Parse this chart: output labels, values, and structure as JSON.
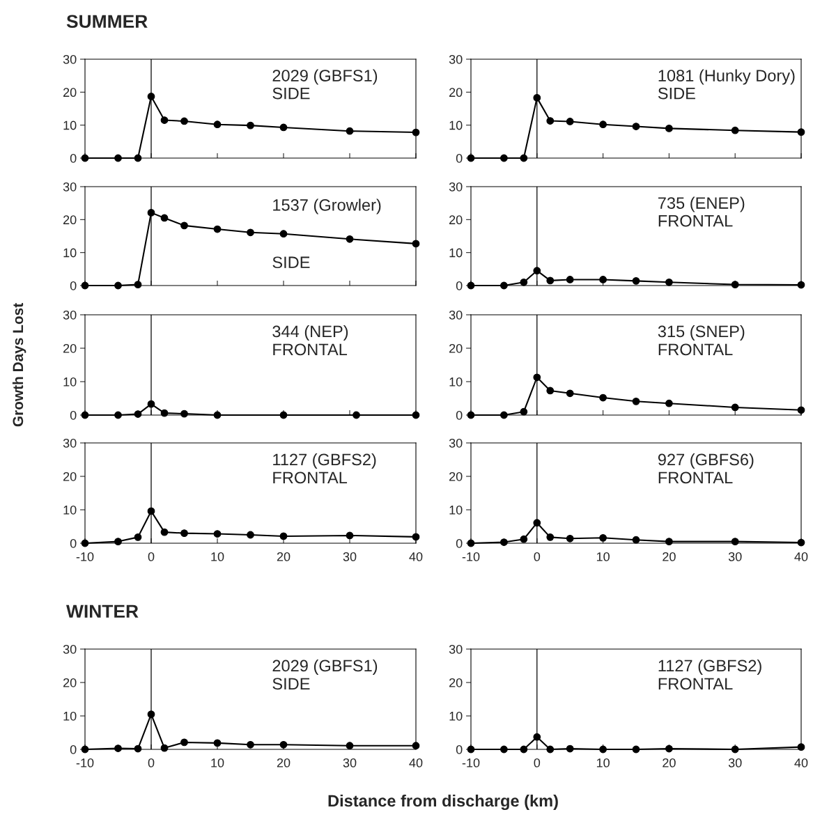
{
  "chart_data": [
    {
      "type": "line",
      "title": "SUMMER",
      "annotations": [
        "2029 (GBFS1)",
        "SIDE"
      ],
      "x": [
        -10,
        -5,
        -2,
        0,
        2,
        5,
        10,
        15,
        20,
        30,
        40
      ],
      "series": [
        {
          "color": "#000000",
          "values": [
            0,
            0,
            0,
            18.7,
            11.5,
            11.2,
            10.2,
            9.9,
            9.3,
            8.2,
            7.8
          ]
        }
      ],
      "xlim": [
        -10,
        40
      ],
      "xticks": [
        -10,
        0,
        10,
        20,
        30,
        40
      ],
      "ylim": [
        0,
        30
      ],
      "yticks": [
        0,
        10,
        20,
        30
      ],
      "tick_labels": "y",
      "ref_lines": [
        {
          "axis": "x",
          "value": 0
        }
      ],
      "marker": "circle",
      "line_style": "solid"
    },
    {
      "type": "line",
      "annotations": [
        "1081 (Hunky Dory)",
        "SIDE"
      ],
      "x": [
        -10,
        -5,
        -2,
        0,
        2,
        5,
        10,
        15,
        20,
        30,
        40
      ],
      "series": [
        {
          "color": "#000000",
          "values": [
            0,
            0,
            0,
            18.3,
            11.3,
            11.1,
            10.2,
            9.6,
            9.0,
            8.4,
            7.9
          ]
        }
      ],
      "xlim": [
        -10,
        40
      ],
      "xticks": [
        -10,
        0,
        10,
        20,
        30,
        40
      ],
      "ylim": [
        0,
        30
      ],
      "yticks": [
        0,
        10,
        20,
        30
      ],
      "tick_labels": "y",
      "ref_lines": [
        {
          "axis": "x",
          "value": 0
        }
      ],
      "marker": "circle",
      "line_style": "solid"
    },
    {
      "type": "line",
      "annotations": [
        "1537 (Growler)",
        "SIDE"
      ],
      "x": [
        -10,
        -5,
        -2,
        0,
        2,
        5,
        10,
        15,
        20,
        30,
        40
      ],
      "series": [
        {
          "color": "#000000",
          "values": [
            0,
            0,
            0.3,
            22.1,
            20.5,
            18.2,
            17.1,
            16.1,
            15.7,
            14.1,
            12.7
          ]
        }
      ],
      "xlim": [
        -10,
        40
      ],
      "xticks": [
        -10,
        0,
        10,
        20,
        30,
        40
      ],
      "ylim": [
        0,
        30
      ],
      "yticks": [
        0,
        10,
        20,
        30
      ],
      "tick_labels": "y",
      "ref_lines": [
        {
          "axis": "x",
          "value": 0
        }
      ],
      "marker": "circle",
      "line_style": "solid"
    },
    {
      "type": "line",
      "annotations": [
        "735 (ENEP)",
        "FRONTAL"
      ],
      "x": [
        -10,
        -5,
        -2,
        0,
        2,
        5,
        10,
        15,
        20,
        30,
        40
      ],
      "series": [
        {
          "color": "#000000",
          "values": [
            0,
            0,
            1.0,
            4.5,
            1.5,
            1.8,
            1.8,
            1.4,
            1.0,
            0.3,
            0.2
          ]
        }
      ],
      "xlim": [
        -10,
        40
      ],
      "xticks": [
        -10,
        0,
        10,
        20,
        30,
        40
      ],
      "ylim": [
        0,
        30
      ],
      "yticks": [
        0,
        10,
        20,
        30
      ],
      "tick_labels": "y",
      "ref_lines": [
        {
          "axis": "x",
          "value": 0
        }
      ],
      "marker": "circle",
      "line_style": "solid"
    },
    {
      "type": "line",
      "ylabel": "Growth Days Lost",
      "annotations": [
        "344 (NEP)",
        "FRONTAL"
      ],
      "x": [
        -10,
        -5,
        -2,
        0,
        2,
        5,
        10,
        20,
        31,
        40
      ],
      "series": [
        {
          "color": "#000000",
          "values": [
            0,
            0,
            0.3,
            3.3,
            0.6,
            0.4,
            0,
            0,
            0,
            0
          ]
        }
      ],
      "xlim": [
        -10,
        40
      ],
      "xticks": [
        -10,
        0,
        10,
        20,
        30,
        40
      ],
      "ylim": [
        0,
        30
      ],
      "yticks": [
        0,
        10,
        20,
        30
      ],
      "tick_labels": "y",
      "ref_lines": [
        {
          "axis": "x",
          "value": 0
        }
      ],
      "marker": "circle",
      "line_style": "solid"
    },
    {
      "type": "line",
      "annotations": [
        "315 (SNEP)",
        "FRONTAL"
      ],
      "x": [
        -10,
        -5,
        -2,
        0,
        2,
        5,
        10,
        15,
        20,
        30,
        40
      ],
      "series": [
        {
          "color": "#000000",
          "values": [
            0,
            0,
            1.0,
            11.3,
            7.3,
            6.5,
            5.2,
            4.1,
            3.5,
            2.3,
            1.5
          ]
        }
      ],
      "xlim": [
        -10,
        40
      ],
      "xticks": [
        -10,
        0,
        10,
        20,
        30,
        40
      ],
      "ylim": [
        0,
        30
      ],
      "yticks": [
        0,
        10,
        20,
        30
      ],
      "tick_labels": "y",
      "ref_lines": [
        {
          "axis": "x",
          "value": 0
        }
      ],
      "marker": "circle",
      "line_style": "solid"
    },
    {
      "type": "line",
      "annotations": [
        "1127 (GBFS2)",
        "FRONTAL"
      ],
      "x": [
        -10,
        -5,
        -2,
        0,
        2,
        5,
        10,
        15,
        20,
        30,
        40
      ],
      "series": [
        {
          "color": "#000000",
          "values": [
            0,
            0.5,
            1.8,
            9.6,
            3.3,
            3.0,
            2.8,
            2.5,
            2.1,
            2.3,
            1.9
          ]
        }
      ],
      "xlim": [
        -10,
        40
      ],
      "xticks": [
        -10,
        0,
        10,
        20,
        30,
        40
      ],
      "ylim": [
        0,
        30
      ],
      "yticks": [
        0,
        10,
        20,
        30
      ],
      "ref_lines": [
        {
          "axis": "x",
          "value": 0
        }
      ],
      "marker": "circle",
      "line_style": "solid"
    },
    {
      "type": "line",
      "annotations": [
        "927 (GBFS6)",
        "FRONTAL"
      ],
      "x": [
        -10,
        -5,
        -2,
        0,
        2,
        5,
        10,
        15,
        20,
        30,
        40
      ],
      "series": [
        {
          "color": "#000000",
          "values": [
            0,
            0.3,
            1.2,
            6.1,
            1.8,
            1.4,
            1.6,
            1.0,
            0.5,
            0.5,
            0.2
          ]
        }
      ],
      "xlim": [
        -10,
        40
      ],
      "xticks": [
        -10,
        0,
        10,
        20,
        30,
        40
      ],
      "ylim": [
        0,
        30
      ],
      "yticks": [
        0,
        10,
        20,
        30
      ],
      "ref_lines": [
        {
          "axis": "x",
          "value": 0
        }
      ],
      "marker": "circle",
      "line_style": "solid"
    },
    {
      "type": "line",
      "title": "WINTER",
      "xlabel": "Distance from discharge (km)",
      "annotations": [
        "2029 (GBFS1)",
        "SIDE"
      ],
      "x": [
        -10,
        -5,
        -2,
        0,
        2,
        5,
        10,
        15,
        20,
        30,
        40
      ],
      "series": [
        {
          "color": "#000000",
          "values": [
            0,
            0.3,
            0.2,
            10.5,
            0.4,
            2.1,
            1.9,
            1.4,
            1.4,
            1.1,
            1.1
          ]
        }
      ],
      "xlim": [
        -10,
        40
      ],
      "xticks": [
        -10,
        0,
        10,
        20,
        30,
        40
      ],
      "ylim": [
        0,
        30
      ],
      "yticks": [
        0,
        10,
        20,
        30
      ],
      "ref_lines": [
        {
          "axis": "x",
          "value": 0
        }
      ],
      "marker": "circle",
      "line_style": "solid"
    },
    {
      "type": "line",
      "annotations": [
        "1127 (GBFS2)",
        "FRONTAL"
      ],
      "x": [
        -10,
        -5,
        -2,
        0,
        2,
        5,
        10,
        15,
        20,
        30,
        40
      ],
      "series": [
        {
          "color": "#000000",
          "values": [
            0,
            0,
            0,
            3.7,
            0,
            0.2,
            0,
            0,
            0.2,
            0,
            0.7
          ]
        }
      ],
      "xlim": [
        -10,
        40
      ],
      "xticks": [
        -10,
        0,
        10,
        20,
        30,
        40
      ],
      "ylim": [
        0,
        30
      ],
      "yticks": [
        0,
        10,
        20,
        30
      ],
      "ref_lines": [
        {
          "axis": "x",
          "value": 0
        }
      ],
      "marker": "circle",
      "line_style": "solid"
    }
  ]
}
